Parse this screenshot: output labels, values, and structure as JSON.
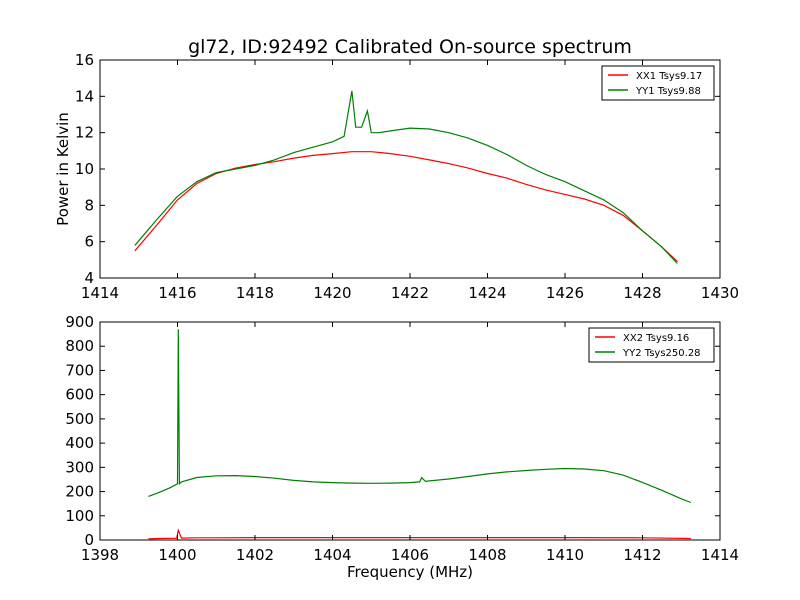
{
  "title": "gl72, ID:92492 Calibrated On-source spectrum",
  "chart_data": [
    {
      "type": "line",
      "title": "gl72, ID:92492 Calibrated On-source spectrum",
      "xlabel": "",
      "ylabel": "Power in Kelvin",
      "xlim": [
        1414,
        1430
      ],
      "ylim": [
        4,
        16
      ],
      "xticks": [
        1414,
        1416,
        1418,
        1420,
        1422,
        1424,
        1426,
        1428,
        1430
      ],
      "yticks": [
        4,
        6,
        8,
        10,
        12,
        14,
        16
      ],
      "legend_position": "top-right",
      "grid": false,
      "series": [
        {
          "name": "XX1 Tsys9.17",
          "color": "#ff0000",
          "x": [
            1414.9,
            1415.5,
            1416.0,
            1416.5,
            1417.0,
            1417.5,
            1418.0,
            1418.5,
            1419.0,
            1419.5,
            1420.0,
            1420.5,
            1421.0,
            1421.5,
            1422.0,
            1422.5,
            1423.0,
            1423.5,
            1424.0,
            1424.5,
            1425.0,
            1425.5,
            1426.0,
            1426.5,
            1427.0,
            1427.5,
            1428.0,
            1428.5,
            1428.9
          ],
          "y": [
            5.5,
            7.0,
            8.3,
            9.2,
            9.75,
            10.05,
            10.25,
            10.4,
            10.6,
            10.75,
            10.85,
            10.95,
            10.95,
            10.85,
            10.7,
            10.5,
            10.3,
            10.05,
            9.75,
            9.5,
            9.15,
            8.85,
            8.6,
            8.35,
            8.0,
            7.45,
            6.6,
            5.7,
            4.9
          ]
        },
        {
          "name": "YY1 Tsys9.88",
          "color": "#008000",
          "x": [
            1414.9,
            1415.5,
            1416.0,
            1416.5,
            1417.0,
            1417.5,
            1418.0,
            1418.5,
            1419.0,
            1419.5,
            1420.0,
            1420.3,
            1420.5,
            1420.6,
            1420.75,
            1420.9,
            1421.0,
            1421.2,
            1421.5,
            1422.0,
            1422.5,
            1423.0,
            1423.5,
            1424.0,
            1424.5,
            1425.0,
            1425.5,
            1426.0,
            1426.5,
            1427.0,
            1427.5,
            1428.0,
            1428.5,
            1428.9
          ],
          "y": [
            5.8,
            7.3,
            8.5,
            9.3,
            9.8,
            10.0,
            10.2,
            10.5,
            10.9,
            11.2,
            11.5,
            11.8,
            14.3,
            12.3,
            12.3,
            13.2,
            12.0,
            12.0,
            12.1,
            12.25,
            12.2,
            12.0,
            11.7,
            11.3,
            10.8,
            10.2,
            9.7,
            9.3,
            8.8,
            8.3,
            7.6,
            6.6,
            5.7,
            4.8
          ]
        }
      ]
    },
    {
      "type": "line",
      "title": "",
      "xlabel": "Frequency (MHz)",
      "ylabel": "",
      "xlim": [
        1398,
        1414
      ],
      "ylim": [
        0,
        900
      ],
      "xticks": [
        1398,
        1400,
        1402,
        1404,
        1406,
        1408,
        1410,
        1412,
        1414
      ],
      "yticks": [
        0,
        100,
        200,
        300,
        400,
        500,
        600,
        700,
        800,
        900
      ],
      "legend_position": "top-right",
      "grid": false,
      "series": [
        {
          "name": "XX2 Tsys9.16",
          "color": "#ff0000",
          "x": [
            1399.25,
            1399.5,
            1399.9,
            1399.98,
            1400.02,
            1400.1,
            1400.5,
            1401,
            1402,
            1404,
            1406,
            1408,
            1410,
            1412,
            1413.25
          ],
          "y": [
            5,
            6,
            7,
            7,
            40,
            8,
            9,
            9,
            10,
            10,
            10,
            10,
            10,
            9,
            6
          ]
        },
        {
          "name": "YY2 Tsys250.28",
          "color": "#008000",
          "x": [
            1399.25,
            1399.5,
            1399.8,
            1399.95,
            1400.0,
            1400.02,
            1400.05,
            1400.1,
            1400.5,
            1401.0,
            1401.5,
            1402.0,
            1402.5,
            1403.0,
            1403.5,
            1404.0,
            1404.5,
            1405.0,
            1405.5,
            1406.0,
            1406.25,
            1406.3,
            1406.4,
            1406.5,
            1407.0,
            1407.5,
            1408.0,
            1408.5,
            1409.0,
            1409.5,
            1410.0,
            1410.5,
            1411.0,
            1411.5,
            1412.0,
            1412.5,
            1413.0,
            1413.25
          ],
          "y": [
            180,
            195,
            215,
            228,
            232,
            870,
            232,
            240,
            258,
            265,
            266,
            262,
            255,
            246,
            240,
            237,
            235,
            234,
            235,
            237,
            240,
            257,
            242,
            244,
            252,
            262,
            273,
            281,
            287,
            292,
            295,
            293,
            286,
            268,
            238,
            205,
            170,
            155
          ]
        }
      ]
    }
  ]
}
